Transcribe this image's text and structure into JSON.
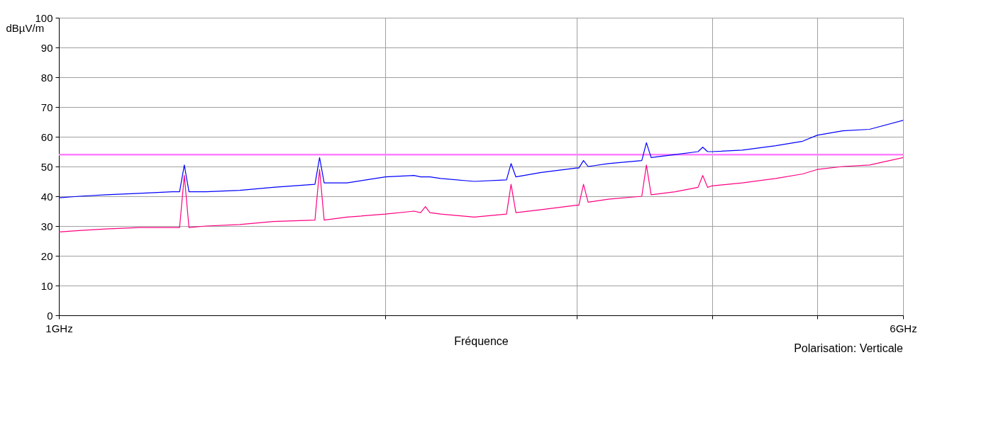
{
  "chart_data": {
    "type": "line",
    "xlabel": "Fréquence",
    "ylabel": "dBµV/m",
    "annotations": [
      "Polarisation: Verticale"
    ],
    "x": [
      1.0,
      1.044,
      1.105,
      1.186,
      1.273,
      1.292,
      1.305,
      1.318,
      1.367,
      1.468,
      1.576,
      1.722,
      1.739,
      1.756,
      1.843,
      2.0,
      2.125,
      2.155,
      2.177,
      2.198,
      2.249,
      2.415,
      2.586,
      2.611,
      2.638,
      2.784,
      3.0,
      3.015,
      3.045,
      3.075,
      3.21,
      3.446,
      3.48,
      3.515,
      3.7,
      3.883,
      3.922,
      3.962,
      4.0,
      4.265,
      4.58,
      4.848,
      5.0,
      5.279,
      5.588,
      6.0
    ],
    "series": [
      {
        "color": "#0000ff",
        "values": [
          39.5,
          40,
          40.5,
          41,
          41.5,
          41.5,
          50.5,
          41.5,
          41.5,
          42,
          43,
          44,
          53,
          44.5,
          44.5,
          46.5,
          47,
          46.5,
          46.5,
          46.5,
          46,
          45,
          45.5,
          51,
          46.5,
          48,
          49.5,
          49.5,
          52,
          50,
          51,
          52,
          58,
          53,
          54,
          55,
          56.5,
          55,
          55,
          55.5,
          57,
          58.5,
          60.5,
          62,
          62.5,
          65.5
        ]
      },
      {
        "color": "#ff0080",
        "values": [
          28,
          28.5,
          29,
          29.5,
          29.5,
          29.5,
          47,
          29.5,
          30,
          30.5,
          31.5,
          32,
          49,
          32,
          33,
          34,
          35,
          34.5,
          36.5,
          34.5,
          34,
          33,
          34,
          44,
          34.5,
          35.5,
          37,
          37,
          44,
          38,
          39,
          40,
          50.5,
          40.5,
          41.5,
          43,
          47,
          43,
          43.5,
          44.5,
          46,
          47.5,
          49,
          50,
          50.5,
          53
        ]
      }
    ],
    "ref_lines": [
      {
        "axis": "y",
        "value": 54,
        "color": "#ff80ff"
      }
    ],
    "log": "x",
    "xlim": [
      1,
      6
    ],
    "xticks": [
      {
        "value": 1,
        "label": "1GHz"
      },
      {
        "value": 2,
        "label": null
      },
      {
        "value": 3,
        "label": null
      },
      {
        "value": 4,
        "label": null
      },
      {
        "value": 5,
        "label": null
      },
      {
        "value": 6,
        "label": "6GHz"
      }
    ],
    "ylim": [
      0,
      100
    ],
    "yticks": [
      0,
      10,
      20,
      30,
      40,
      50,
      60,
      70,
      80,
      90,
      100
    ],
    "grid": true,
    "legend": false,
    "marker": "none",
    "line_style": "solid"
  }
}
